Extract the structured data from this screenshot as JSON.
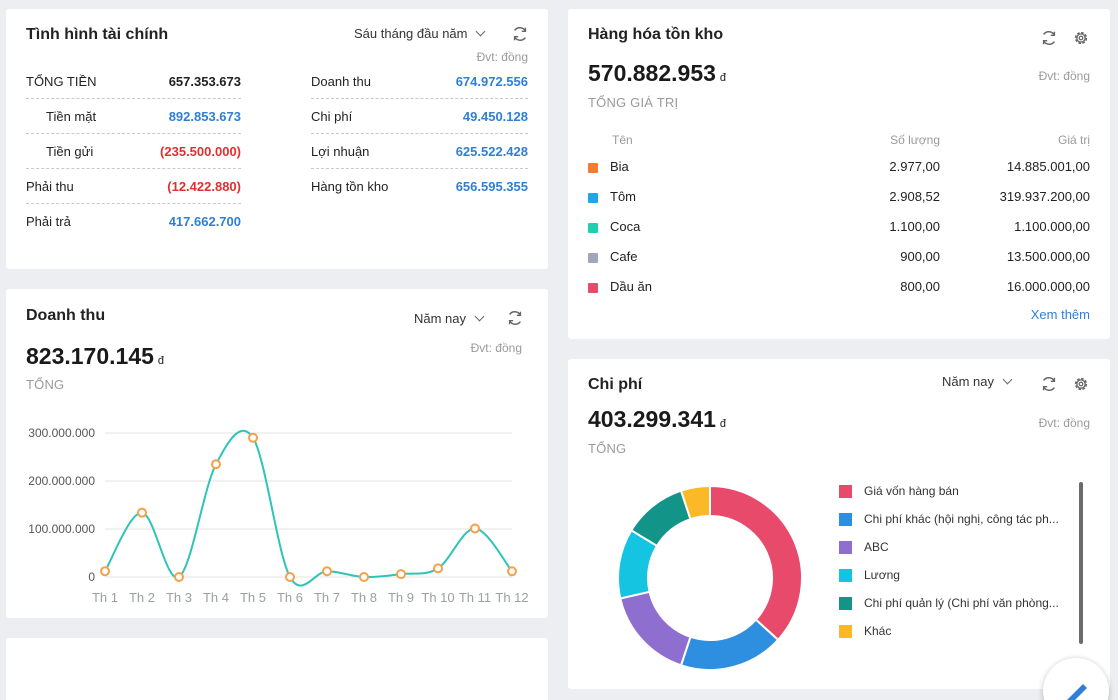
{
  "finance": {
    "title": "Tình hình tài chính",
    "period": "Sáu tháng đầu năm",
    "unit": "Đvt: đồng",
    "left": [
      {
        "label": "TỔNG TIỀN",
        "value": "657.353.673",
        "color": "black",
        "indent": false
      },
      {
        "label": "Tiền mặt",
        "value": "892.853.673",
        "color": "blue",
        "indent": true
      },
      {
        "label": "Tiền gửi",
        "value": "(235.500.000)",
        "color": "red",
        "indent": true
      },
      {
        "label": "Phải thu",
        "value": "(12.422.880)",
        "color": "red",
        "indent": false
      },
      {
        "label": "Phải trả",
        "value": "417.662.700",
        "color": "blue",
        "indent": false
      }
    ],
    "right": [
      {
        "label": "Doanh thu",
        "value": "674.972.556",
        "color": "blue"
      },
      {
        "label": "Chi phí",
        "value": "49.450.128",
        "color": "blue"
      },
      {
        "label": "Lợi nhuận",
        "value": "625.522.428",
        "color": "blue"
      },
      {
        "label": "Hàng tồn kho",
        "value": "656.595.355",
        "color": "blue"
      }
    ]
  },
  "inventory": {
    "title": "Hàng hóa tồn kho",
    "unit": "Đvt: đồng",
    "total": "570.882.953",
    "currency": "đ",
    "total_label": "TỔNG GIÁ TRỊ",
    "headers": {
      "name": "Tên",
      "qty": "Số lượng",
      "value": "Giá trị"
    },
    "rows": [
      {
        "name": "Bia",
        "qty": "2.977,00",
        "value": "14.885.001,00",
        "color": "#f47c30"
      },
      {
        "name": "Tôm",
        "qty": "2.908,52",
        "value": "319.937.200,00",
        "color": "#1ea5ea"
      },
      {
        "name": "Coca",
        "qty": "1.100,00",
        "value": "1.100.000,00",
        "color": "#1fcfb0"
      },
      {
        "name": "Cafe",
        "qty": "900,00",
        "value": "13.500.000,00",
        "color": "#a0a7b8"
      },
      {
        "name": "Dầu ăn",
        "qty": "800,00",
        "value": "16.000.000,00",
        "color": "#e84a6c"
      }
    ],
    "more_link": "Xem thêm"
  },
  "revenue": {
    "title": "Doanh thu",
    "period": "Năm nay",
    "unit": "Đvt: đồng",
    "total": "823.170.145",
    "currency": "đ",
    "total_label": "TỔNG"
  },
  "chart_data": {
    "type": "line",
    "categories": [
      "Th 1",
      "Th 2",
      "Th 3",
      "Th 4",
      "Th 5",
      "Th 6",
      "Th 7",
      "Th 8",
      "Th 9",
      "Th 10",
      "Th 11",
      "Th 12"
    ],
    "values": [
      12000000,
      134000000,
      0,
      235000000,
      290000000,
      0,
      12000000,
      0,
      6000000,
      18000000,
      101000000,
      12000000
    ],
    "yticks": [
      0,
      100000000,
      200000000,
      300000000
    ],
    "ytick_labels": [
      "0",
      "100.000.000",
      "200.000.000",
      "300.000.000"
    ],
    "ylim": [
      0,
      300000000
    ],
    "line_color": "#2ec4b6",
    "marker_color": "#f5a04a",
    "grid": true
  },
  "expenses": {
    "title": "Chi phí",
    "period": "Năm nay",
    "unit": "Đvt: đồng",
    "total": "403.299.341",
    "currency": "đ",
    "total_label": "TỔNG",
    "chart_data": {
      "type": "pie",
      "labels": [
        "Giá vốn hàng bán",
        "Chi phí khác (hội nghị, công tác ph...",
        "ABC",
        "Lương",
        "Chi phí quản lý (Chi phí văn phòng...",
        "Khác"
      ],
      "values": [
        36,
        18,
        16,
        12,
        11,
        5
      ],
      "colors": [
        "#e84a6c",
        "#2e8fe0",
        "#8e6fcf",
        "#14c4e0",
        "#129488",
        "#fbb928"
      ]
    }
  }
}
